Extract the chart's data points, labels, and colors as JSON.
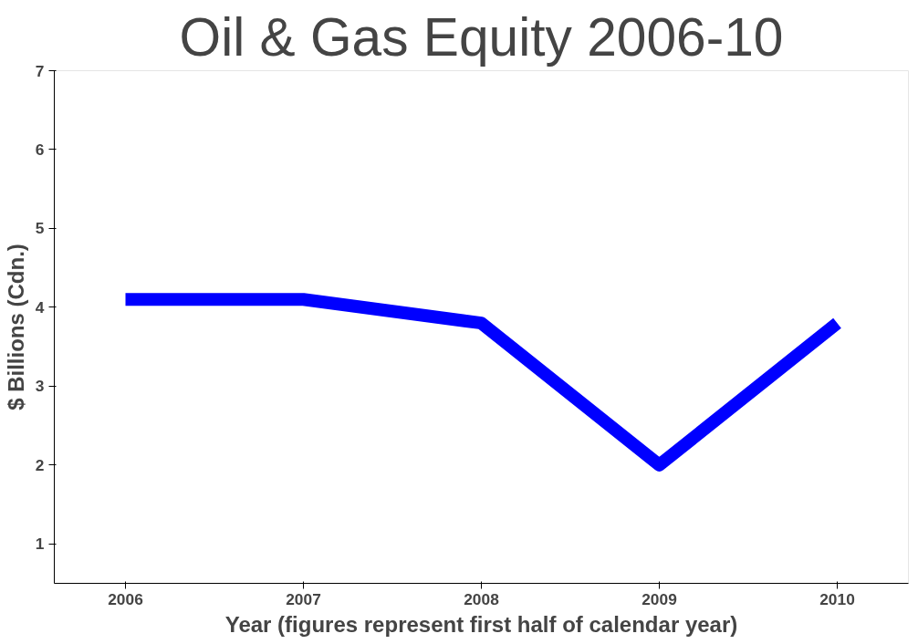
{
  "chart_data": {
    "type": "line",
    "title": "Oil & Gas Equity 2006-10",
    "xlabel": "Year (figures represent first half of calendar year)",
    "ylabel": "$ Billions (Cdn.)",
    "categories": [
      "2006",
      "2007",
      "2008",
      "2009",
      "2010"
    ],
    "series": [
      {
        "color": "#0000ff",
        "values": [
          4.1,
          4.1,
          3.8,
          2.0,
          3.8
        ]
      }
    ],
    "ylim": [
      0.5,
      7
    ],
    "yticks": [
      1,
      2,
      3,
      4,
      5,
      6,
      7
    ],
    "grid": false,
    "marker": "none",
    "line_style": "solid"
  }
}
